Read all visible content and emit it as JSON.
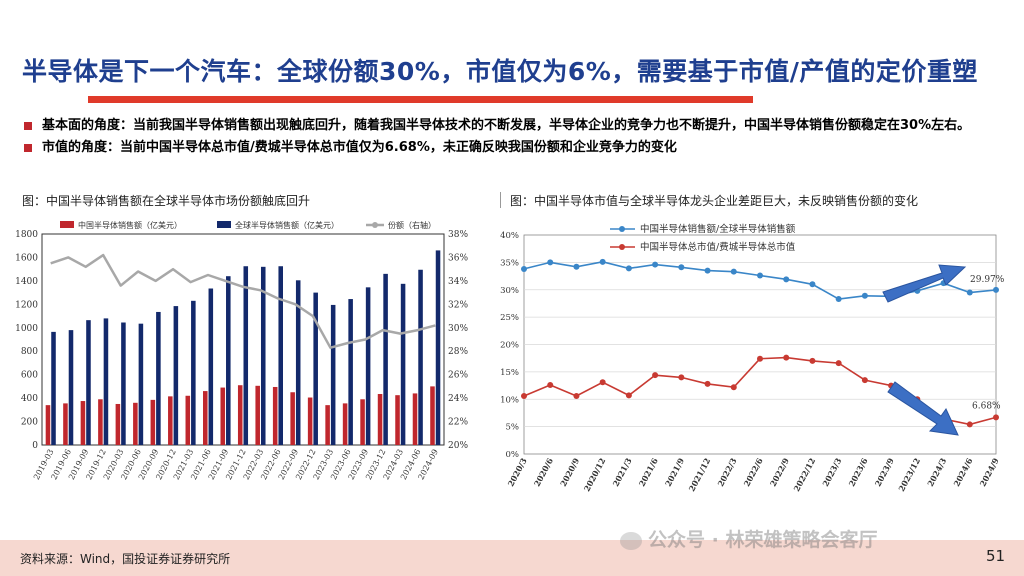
{
  "title": "半导体是下一个汽车：全球份额30%，市值仅为6%，需要基于市值/产值的定价重塑",
  "bullets": [
    "基本面的角度：当前我国半导体销售额出现触底回升，随着我国半导体技术的不断发展，半导体企业的竞争力也不断提升，中国半导体销售份额稳定在30%左右。",
    "市值的角度：当前中国半导体总市值/费城半导体总市值仅为6.68%，未正确反映我国份额和企业竞争力的变化"
  ],
  "captions": {
    "left": "图：中国半导体销售额在全球半导体市场份额触底回升",
    "right": "图：中国半导体市值与全球半导体龙头企业差距巨大，未反映销售份额的变化"
  },
  "footer": {
    "source": "资料来源：Wind，国投证券证券研究所",
    "page": "51",
    "watermark": "公众号 · 林荣雄策略会客厅"
  },
  "colors": {
    "title": "#1f3f8f",
    "accent": "#e03a2a",
    "china_bar": "#c0272d",
    "global_bar": "#13296b",
    "share_line": "#a8a8a8",
    "blue_line": "#3a86c8",
    "red_line": "#c83a32",
    "arrow": "#3c6fc4"
  },
  "chart_data": [
    {
      "type": "bar",
      "legend": [
        "中国半导体销售额（亿美元）",
        "全球半导体销售额（亿美元）",
        "份额（右轴）"
      ],
      "categories": [
        "2019-03",
        "2019-06",
        "2019-09",
        "2019-12",
        "2020-03",
        "2020-06",
        "2020-09",
        "2020-12",
        "2021-03",
        "2021-06",
        "2021-09",
        "2021-12",
        "2022-03",
        "2022-06",
        "2022-09",
        "2022-12",
        "2023-03",
        "2023-06",
        "2023-09",
        "2023-12",
        "2024-03",
        "2024-06",
        "2024-09"
      ],
      "series": [
        {
          "name": "中国半导体销售额（亿美元）",
          "axis": "left",
          "values": [
            340,
            355,
            375,
            390,
            350,
            360,
            385,
            415,
            420,
            460,
            490,
            510,
            505,
            495,
            450,
            405,
            340,
            355,
            390,
            435,
            425,
            440,
            500
          ]
        },
        {
          "name": "全球半导体销售额（亿美元）",
          "axis": "left",
          "values": [
            965,
            980,
            1065,
            1080,
            1045,
            1035,
            1135,
            1185,
            1230,
            1335,
            1440,
            1525,
            1520,
            1525,
            1405,
            1300,
            1195,
            1245,
            1345,
            1460,
            1375,
            1495,
            1660
          ]
        },
        {
          "name": "份额（右轴）",
          "axis": "right",
          "type": "line",
          "values": [
            35.5,
            36.0,
            35.2,
            36.2,
            33.6,
            34.8,
            34.0,
            35.0,
            33.9,
            34.5,
            34.0,
            33.5,
            33.2,
            32.5,
            32.0,
            31.0,
            28.3,
            28.7,
            29.0,
            29.8,
            29.5,
            29.8,
            30.2
          ]
        }
      ],
      "ylim_left": [
        0,
        1800
      ],
      "left_ticks": [
        0,
        200,
        400,
        600,
        800,
        1000,
        1200,
        1400,
        1600,
        1800
      ],
      "ylim_right": [
        20,
        38
      ],
      "right_ticks": [
        "20%",
        "22%",
        "24%",
        "26%",
        "28%",
        "30%",
        "32%",
        "34%",
        "36%",
        "38%"
      ]
    },
    {
      "type": "line",
      "legend": [
        "中国半导体销售额/全球半导体销售额",
        "中国半导体总市值/费城半导体总市值"
      ],
      "x": [
        "2020/3",
        "2020/6",
        "2020/9",
        "2020/12",
        "2021/3",
        "2021/6",
        "2021/9",
        "2021/12",
        "2022/3",
        "2022/6",
        "2022/9",
        "2022/12",
        "2023/3",
        "2023/6",
        "2023/9",
        "2023/12",
        "2024/3",
        "2024/6",
        "2024/9"
      ],
      "series": [
        {
          "name": "中国半导体销售额/全球半导体销售额",
          "values": [
            33.8,
            35.0,
            34.2,
            35.1,
            33.9,
            34.6,
            34.1,
            33.5,
            33.3,
            32.6,
            31.9,
            31.0,
            28.3,
            28.9,
            28.8,
            29.8,
            31.2,
            29.5,
            29.97
          ]
        },
        {
          "name": "中国半导体总市值/费城半导体总市值",
          "values": [
            10.6,
            12.6,
            10.6,
            13.1,
            10.7,
            14.4,
            14.0,
            12.8,
            12.2,
            17.4,
            17.6,
            17.0,
            16.6,
            13.5,
            12.5,
            10.0,
            6.4,
            5.4,
            6.68
          ]
        }
      ],
      "ylim": [
        0,
        40
      ],
      "yticks": [
        "0%",
        "5%",
        "10%",
        "15%",
        "20%",
        "25%",
        "30%",
        "35%",
        "40%"
      ],
      "annotations": [
        "29.97%",
        "6.68%"
      ]
    }
  ]
}
